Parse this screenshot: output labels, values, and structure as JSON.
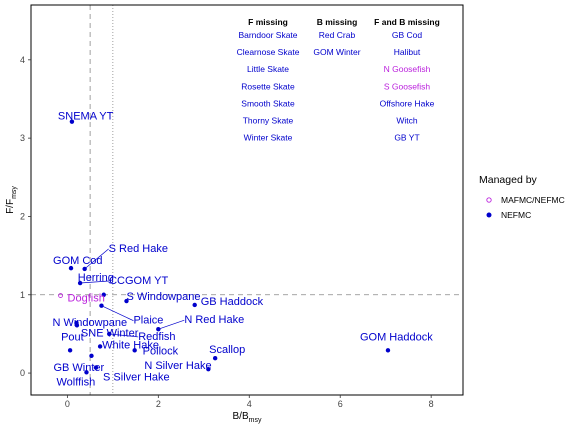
{
  "chart_data": {
    "type": "scatter",
    "xlabel": "B/B",
    "xlabel_sub": "msy",
    "ylabel": "F/F",
    "ylabel_sub": "msy",
    "xlim": [
      -0.8,
      8.7
    ],
    "ylim": [
      -0.28,
      4.7
    ],
    "x_ticks": [
      0,
      2,
      4,
      6,
      8
    ],
    "y_ticks": [
      0,
      1,
      2,
      3,
      4
    ],
    "x_tick_labels": [
      "0",
      "2",
      "4",
      "6",
      "8"
    ],
    "y_tick_labels": [
      "0",
      "1",
      "2",
      "3",
      "4"
    ],
    "reference_lines": {
      "x_dashed": 0.5,
      "x_dotted": 1.0,
      "y_dashed": 1.0
    },
    "legend": {
      "title": "Managed by",
      "position": "right",
      "entries": [
        {
          "name": "MAFMC/NEFMC",
          "color": "#bb22dd",
          "marker": "open-circle"
        },
        {
          "name": "NEFMC",
          "color": "#0000cc",
          "marker": "filled-circle"
        }
      ]
    },
    "points": [
      {
        "label": "SNEMA YT",
        "x": 0.1,
        "y": 3.21,
        "group": "NEFMC"
      },
      {
        "label": "GOM Cod",
        "x": 0.08,
        "y": 1.34,
        "group": "NEFMC"
      },
      {
        "label": "S Red Hake",
        "x": 0.38,
        "y": 1.33,
        "group": "NEFMC"
      },
      {
        "label": "CCGOM YT",
        "x": 0.28,
        "y": 1.15,
        "group": "NEFMC"
      },
      {
        "label": "Herring",
        "x": 0.8,
        "y": 1.0,
        "group": "NEFMC"
      },
      {
        "label": "Dogfish",
        "x": -0.15,
        "y": 0.99,
        "group": "MAFMC/NEFMC"
      },
      {
        "label": "S Windowpane",
        "x": 1.3,
        "y": 0.92,
        "group": "NEFMC"
      },
      {
        "label": "GB Haddock",
        "x": 2.8,
        "y": 0.87,
        "group": "NEFMC"
      },
      {
        "label": "Plaice",
        "x": 0.75,
        "y": 0.86,
        "group": "NEFMC"
      },
      {
        "label": "N Windowpane",
        "x": 0.2,
        "y": 0.64,
        "group": "NEFMC"
      },
      {
        "label": "SNE Winter",
        "x": 0.21,
        "y": 0.61,
        "group": "NEFMC"
      },
      {
        "label": "N Red Hake",
        "x": 2.0,
        "y": 0.56,
        "group": "NEFMC"
      },
      {
        "label": "Redfish",
        "x": 0.92,
        "y": 0.5,
        "group": "NEFMC"
      },
      {
        "label": "White Hake",
        "x": 0.72,
        "y": 0.34,
        "group": "NEFMC"
      },
      {
        "label": "Pout",
        "x": 0.06,
        "y": 0.29,
        "group": "NEFMC"
      },
      {
        "label": "Pollock",
        "x": 1.48,
        "y": 0.29,
        "group": "NEFMC"
      },
      {
        "label": "GOM Haddock",
        "x": 7.05,
        "y": 0.29,
        "group": "NEFMC"
      },
      {
        "label": "Scallop",
        "x": 3.25,
        "y": 0.19,
        "group": "NEFMC"
      },
      {
        "label": "GB Winter",
        "x": 0.53,
        "y": 0.22,
        "group": "NEFMC"
      },
      {
        "label": "N Silver Hake",
        "x": 3.1,
        "y": 0.05,
        "group": "NEFMC"
      },
      {
        "label": "S Silver Hake",
        "x": 0.63,
        "y": 0.07,
        "group": "NEFMC"
      },
      {
        "label": "Wolffish",
        "x": 0.42,
        "y": 0.01,
        "group": "NEFMC"
      }
    ],
    "annotation_table": {
      "columns": [
        {
          "header": "F missing",
          "items": [
            {
              "name": "Barndoor Skate",
              "group": "NEFMC"
            },
            {
              "name": "Clearnose Skate",
              "group": "NEFMC"
            },
            {
              "name": "Little Skate",
              "group": "NEFMC"
            },
            {
              "name": "Rosette Skate",
              "group": "NEFMC"
            },
            {
              "name": "Smooth Skate",
              "group": "NEFMC"
            },
            {
              "name": "Thorny Skate",
              "group": "NEFMC"
            },
            {
              "name": "Winter Skate",
              "group": "NEFMC"
            }
          ]
        },
        {
          "header": "B missing",
          "items": [
            {
              "name": "Red Crab",
              "group": "NEFMC"
            },
            {
              "name": "GOM Winter",
              "group": "NEFMC"
            }
          ]
        },
        {
          "header": "F and B missing",
          "items": [
            {
              "name": "GB Cod",
              "group": "NEFMC"
            },
            {
              "name": "Halibut",
              "group": "NEFMC"
            },
            {
              "name": "N Goosefish",
              "group": "MAFMC/NEFMC"
            },
            {
              "name": "S Goosefish",
              "group": "MAFMC/NEFMC"
            },
            {
              "name": "Offshore Hake",
              "group": "NEFMC"
            },
            {
              "name": "Witch",
              "group": "NEFMC"
            },
            {
              "name": "GB YT",
              "group": "NEFMC"
            }
          ]
        }
      ]
    }
  }
}
